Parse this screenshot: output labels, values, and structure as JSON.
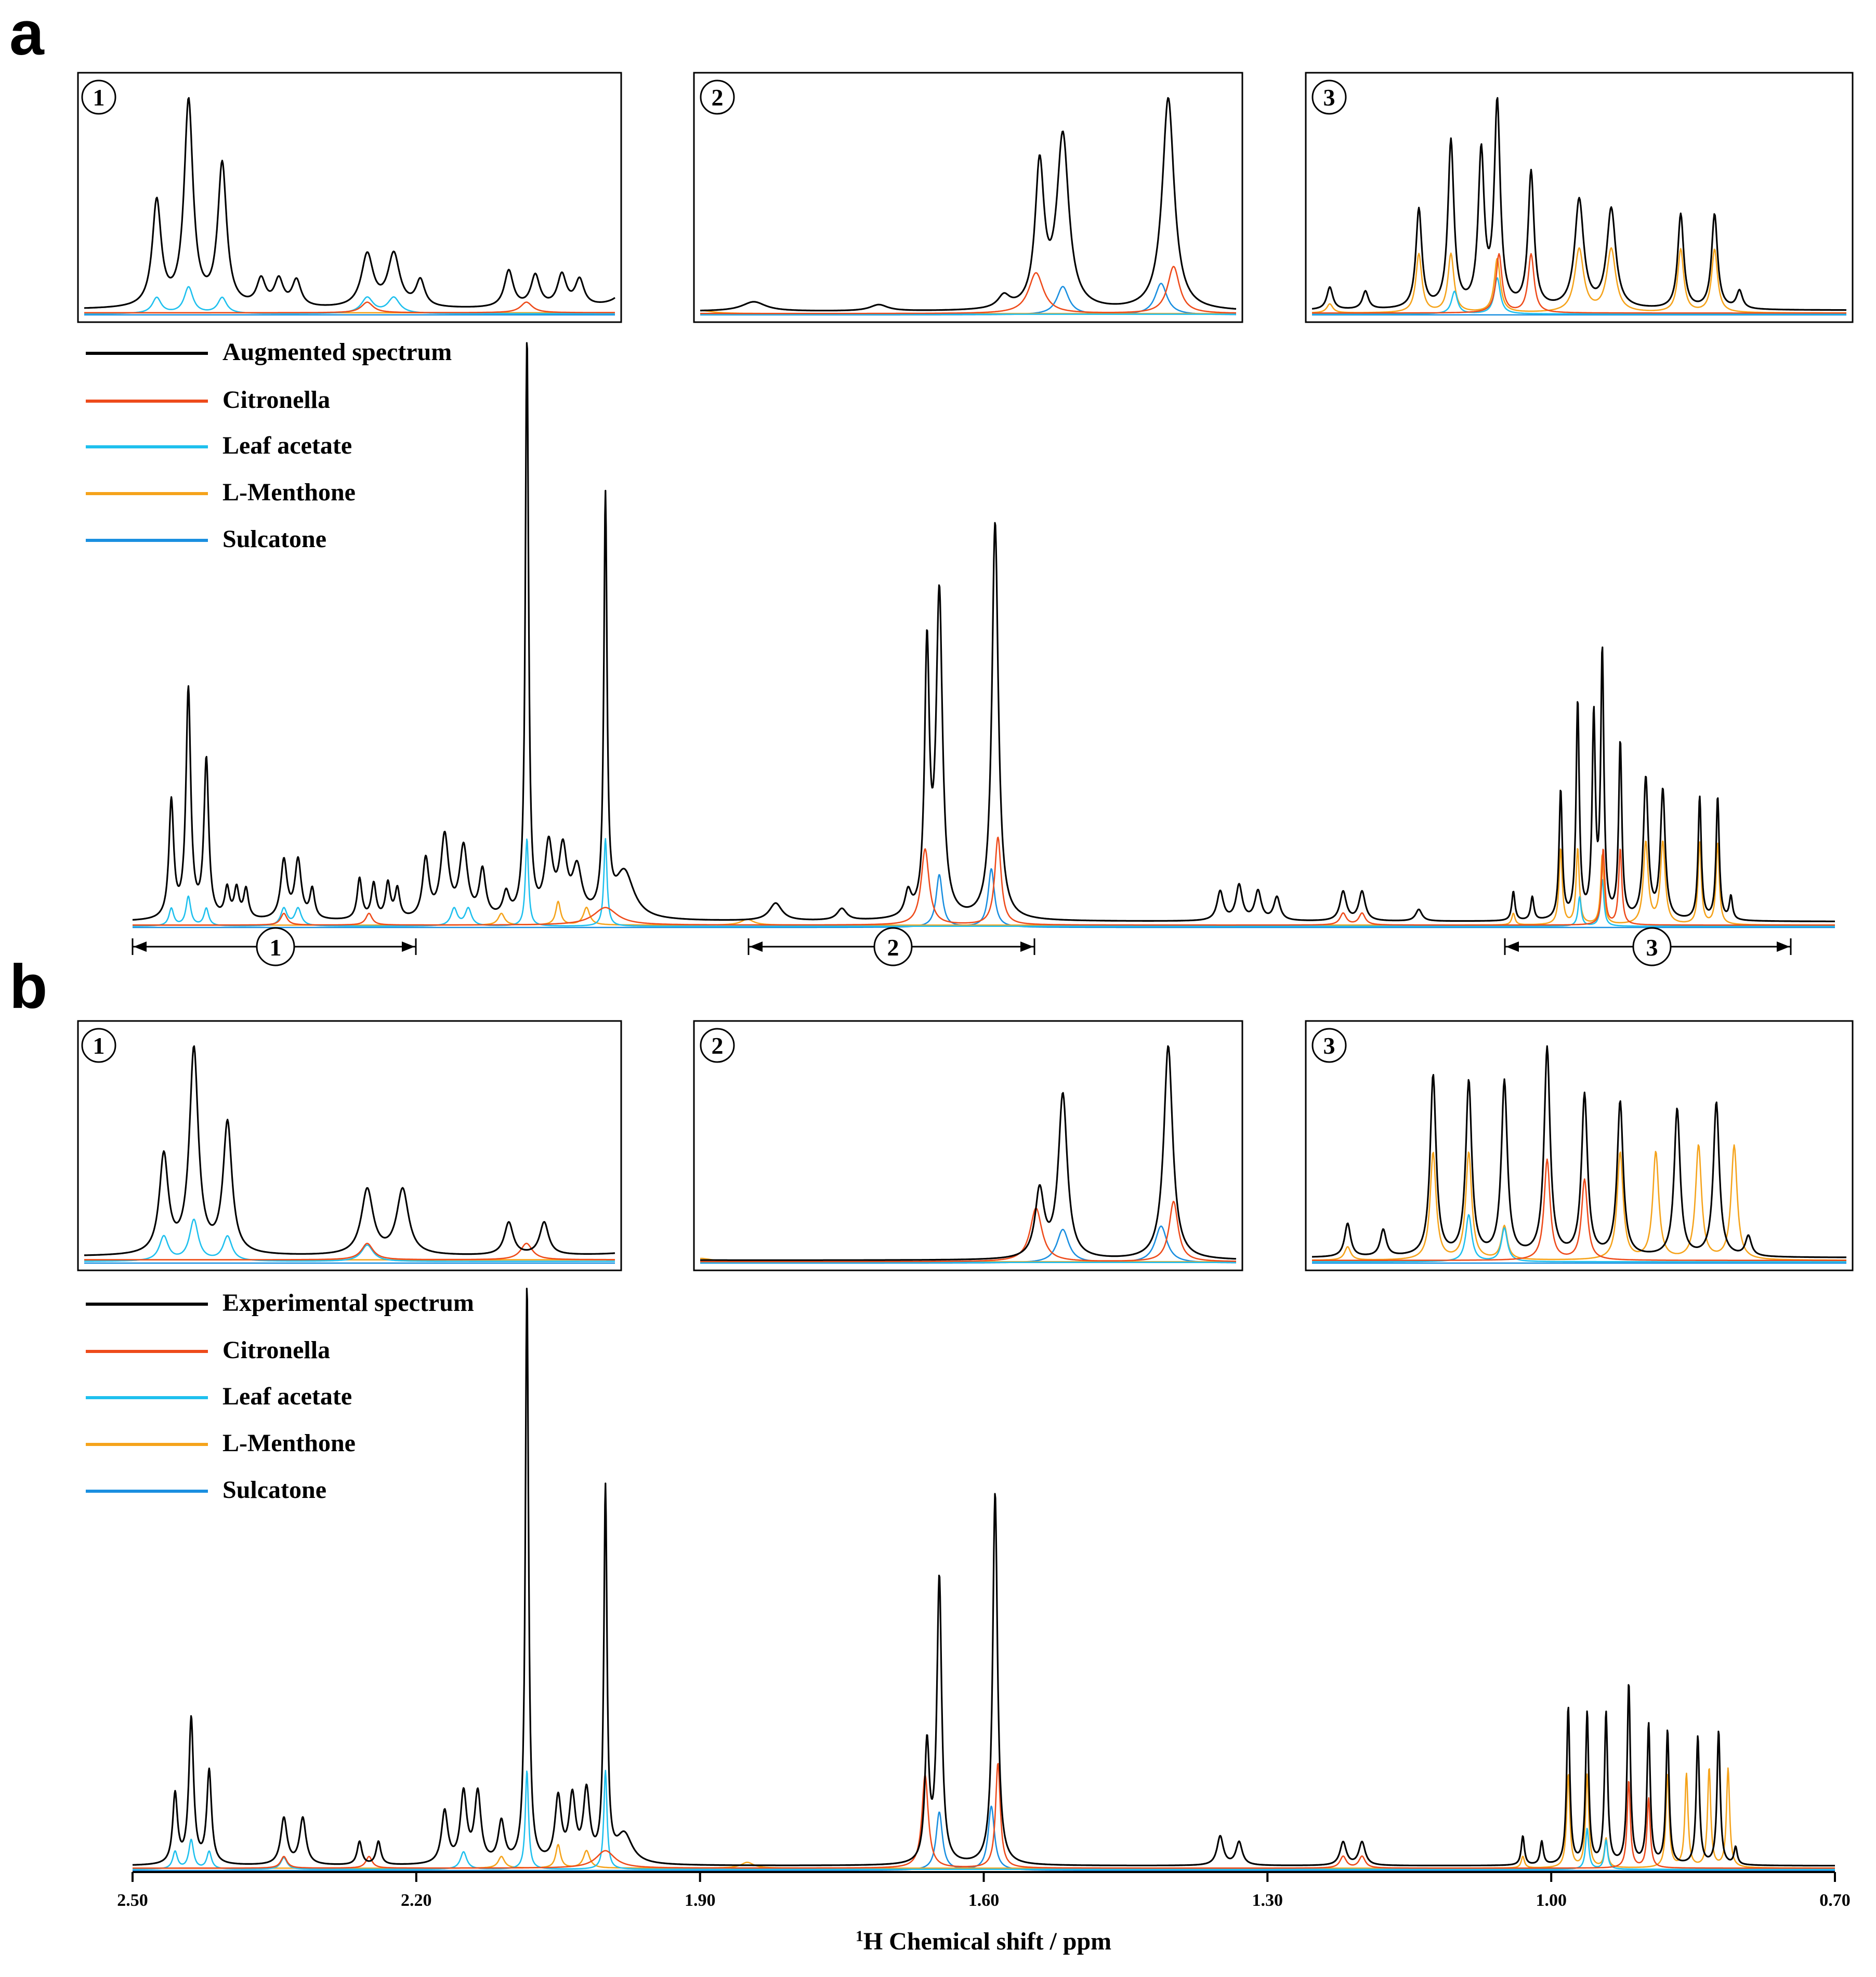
{
  "figure": {
    "panels": [
      {
        "letter": "a",
        "legend": [
          {
            "label": "Augmented spectrum",
            "color": "#000000"
          },
          {
            "label": "Citronella",
            "color": "#ee4b1b"
          },
          {
            "label": "Leaf acetate",
            "color": "#1fc0ee"
          },
          {
            "label": "L-Menthone",
            "color": "#f5a31b"
          },
          {
            "label": "Sulcatone",
            "color": "#1a8fe0"
          }
        ],
        "regions": [
          {
            "label": "1",
            "range": [
              2.5,
              2.2
            ]
          },
          {
            "label": "2",
            "range": [
              1.85,
              1.55
            ]
          },
          {
            "label": "3",
            "range": [
              1.05,
              0.75
            ]
          }
        ]
      },
      {
        "letter": "b",
        "legend": [
          {
            "label": "Experimental spectrum",
            "color": "#000000"
          },
          {
            "label": "Citronella",
            "color": "#ee4b1b"
          },
          {
            "label": "Leaf acetate",
            "color": "#1fc0ee"
          },
          {
            "label": "L-Menthone",
            "color": "#f5a31b"
          },
          {
            "label": "Sulcatone",
            "color": "#1a8fe0"
          }
        ],
        "regions": [
          {
            "label": "1",
            "range": [
              2.5,
              2.2
            ]
          },
          {
            "label": "2",
            "range": [
              1.85,
              1.55
            ]
          },
          {
            "label": "3",
            "range": [
              1.05,
              0.75
            ]
          }
        ]
      }
    ],
    "x_axis": {
      "label_super": "1",
      "label_main": "H Chemical shift / ppm",
      "ticks": [
        "2.50",
        "2.20",
        "1.90",
        "1.60",
        "1.30",
        "1.00",
        "0.70"
      ]
    }
  },
  "chart_data": [
    {
      "type": "line",
      "panel": "a",
      "title": "",
      "xlabel": "1H Chemical shift / ppm",
      "ylabel": "",
      "xlim": [
        2.5,
        0.7
      ],
      "ylim": [
        0,
        1.0
      ],
      "peak_list_note": "shift in ppm, relative intensity (0-1), Lorentzian half-width in ppm",
      "series": [
        {
          "name": "Augmented spectrum",
          "color": "#000000",
          "baseline": 0.01,
          "peaks": [
            [
              2.459,
              0.2,
              0.003
            ],
            [
              2.441,
              0.39,
              0.003
            ],
            [
              2.422,
              0.27,
              0.003
            ],
            [
              2.4,
              0.05,
              0.003
            ],
            [
              2.39,
              0.05,
              0.003
            ],
            [
              2.38,
              0.05,
              0.003
            ],
            [
              2.34,
              0.1,
              0.004
            ],
            [
              2.325,
              0.1,
              0.004
            ],
            [
              2.31,
              0.05,
              0.003
            ],
            [
              2.26,
              0.07,
              0.003
            ],
            [
              2.245,
              0.06,
              0.003
            ],
            [
              2.23,
              0.06,
              0.003
            ],
            [
              2.22,
              0.05,
              0.003
            ],
            [
              2.19,
              0.1,
              0.004
            ],
            [
              2.17,
              0.14,
              0.005
            ],
            [
              2.15,
              0.12,
              0.005
            ],
            [
              2.13,
              0.08,
              0.004
            ],
            [
              2.105,
              0.04,
              0.004
            ],
            [
              2.083,
              1.0,
              0.002
            ],
            [
              2.06,
              0.12,
              0.005
            ],
            [
              2.045,
              0.11,
              0.005
            ],
            [
              2.03,
              0.08,
              0.006
            ],
            [
              2.0,
              0.71,
              0.002
            ],
            [
              1.98,
              0.08,
              0.012
            ],
            [
              1.82,
              0.03,
              0.008
            ],
            [
              1.75,
              0.02,
              0.006
            ],
            [
              1.68,
              0.04,
              0.004
            ],
            [
              1.66,
              0.45,
              0.003
            ],
            [
              1.647,
              0.55,
              0.004
            ],
            [
              1.588,
              0.68,
              0.004
            ],
            [
              1.35,
              0.05,
              0.004
            ],
            [
              1.33,
              0.06,
              0.004
            ],
            [
              1.31,
              0.05,
              0.004
            ],
            [
              1.29,
              0.04,
              0.004
            ],
            [
              1.22,
              0.05,
              0.004
            ],
            [
              1.2,
              0.05,
              0.004
            ],
            [
              1.14,
              0.02,
              0.004
            ],
            [
              1.04,
              0.05,
              0.002
            ],
            [
              1.02,
              0.04,
              0.002
            ],
            [
              0.99,
              0.22,
              0.002
            ],
            [
              0.972,
              0.37,
              0.002
            ],
            [
              0.955,
              0.34,
              0.002
            ],
            [
              0.946,
              0.45,
              0.002
            ],
            [
              0.927,
              0.3,
              0.002
            ],
            [
              0.9,
              0.24,
              0.003
            ],
            [
              0.882,
              0.22,
              0.003
            ],
            [
              0.843,
              0.21,
              0.002
            ],
            [
              0.824,
              0.21,
              0.002
            ],
            [
              0.81,
              0.04,
              0.002
            ]
          ]
        },
        {
          "name": "Citronella",
          "color": "#ee4b1b",
          "baseline": 0.004,
          "peaks": [
            [
              2.34,
              0.02,
              0.004
            ],
            [
              2.25,
              0.02,
              0.004
            ],
            [
              2.0,
              0.03,
              0.015
            ],
            [
              1.662,
              0.13,
              0.005
            ],
            [
              1.585,
              0.15,
              0.004
            ],
            [
              1.22,
              0.02,
              0.004
            ],
            [
              1.2,
              0.02,
              0.004
            ],
            [
              0.945,
              0.13,
              0.002
            ],
            [
              0.927,
              0.13,
              0.002
            ]
          ]
        },
        {
          "name": "Leaf acetate",
          "color": "#1fc0ee",
          "baseline": 0.002,
          "peaks": [
            [
              2.459,
              0.03,
              0.003
            ],
            [
              2.441,
              0.05,
              0.003
            ],
            [
              2.422,
              0.03,
              0.003
            ],
            [
              2.34,
              0.03,
              0.004
            ],
            [
              2.325,
              0.03,
              0.004
            ],
            [
              2.16,
              0.03,
              0.004
            ],
            [
              2.145,
              0.03,
              0.004
            ],
            [
              2.083,
              0.15,
              0.002
            ],
            [
              2.0,
              0.15,
              0.002
            ],
            [
              0.946,
              0.08,
              0.002
            ],
            [
              0.97,
              0.05,
              0.002
            ]
          ]
        },
        {
          "name": "L-Menthone",
          "color": "#f5a31b",
          "baseline": 0.004,
          "peaks": [
            [
              2.11,
              0.02,
              0.004
            ],
            [
              2.05,
              0.04,
              0.003
            ],
            [
              2.02,
              0.03,
              0.004
            ],
            [
              1.85,
              0.01,
              0.008
            ],
            [
              1.04,
              0.02,
              0.002
            ],
            [
              0.99,
              0.13,
              0.002
            ],
            [
              0.972,
              0.13,
              0.002
            ],
            [
              0.946,
              0.12,
              0.002
            ],
            [
              0.9,
              0.14,
              0.003
            ],
            [
              0.882,
              0.14,
              0.003
            ],
            [
              0.843,
              0.14,
              0.002
            ],
            [
              0.824,
              0.14,
              0.002
            ]
          ]
        },
        {
          "name": "Sulcatone",
          "color": "#1a8fe0",
          "baseline": 0.0,
          "peaks": [
            [
              1.647,
              0.09,
              0.004
            ],
            [
              1.592,
              0.1,
              0.004
            ]
          ]
        }
      ]
    },
    {
      "type": "line",
      "panel": "b",
      "title": "",
      "xlabel": "1H Chemical shift / ppm",
      "ylabel": "",
      "xlim": [
        2.5,
        0.7
      ],
      "ylim": [
        0,
        1.0
      ],
      "peak_list_note": "shift in ppm, relative intensity (0-1), Lorentzian half-width in ppm",
      "series": [
        {
          "name": "Experimental spectrum",
          "color": "#000000",
          "baseline": 0.008,
          "peaks": [
            [
              2.455,
              0.12,
              0.003
            ],
            [
              2.438,
              0.25,
              0.003
            ],
            [
              2.419,
              0.16,
              0.003
            ],
            [
              2.34,
              0.08,
              0.004
            ],
            [
              2.32,
              0.08,
              0.004
            ],
            [
              2.26,
              0.04,
              0.003
            ],
            [
              2.24,
              0.04,
              0.003
            ],
            [
              2.17,
              0.09,
              0.004
            ],
            [
              2.15,
              0.12,
              0.004
            ],
            [
              2.135,
              0.12,
              0.004
            ],
            [
              2.11,
              0.07,
              0.004
            ],
            [
              2.083,
              1.0,
              0.002
            ],
            [
              2.05,
              0.11,
              0.004
            ],
            [
              2.035,
              0.11,
              0.004
            ],
            [
              2.02,
              0.12,
              0.004
            ],
            [
              2.0,
              0.64,
              0.002
            ],
            [
              1.98,
              0.05,
              0.01
            ],
            [
              1.66,
              0.2,
              0.003
            ],
            [
              1.647,
              0.49,
              0.003
            ],
            [
              1.588,
              0.64,
              0.003
            ],
            [
              1.35,
              0.05,
              0.004
            ],
            [
              1.33,
              0.04,
              0.004
            ],
            [
              1.22,
              0.04,
              0.004
            ],
            [
              1.2,
              0.04,
              0.004
            ],
            [
              1.03,
              0.05,
              0.002
            ],
            [
              1.01,
              0.04,
              0.002
            ],
            [
              0.982,
              0.27,
              0.002
            ],
            [
              0.962,
              0.26,
              0.002
            ],
            [
              0.942,
              0.26,
              0.002
            ],
            [
              0.918,
              0.31,
              0.002
            ],
            [
              0.897,
              0.24,
              0.002
            ],
            [
              0.877,
              0.23,
              0.002
            ],
            [
              0.845,
              0.22,
              0.002
            ],
            [
              0.823,
              0.23,
              0.002
            ],
            [
              0.805,
              0.03,
              0.002
            ]
          ]
        },
        {
          "name": "Citronella",
          "color": "#ee4b1b",
          "baseline": 0.004,
          "peaks": [
            [
              2.34,
              0.02,
              0.004
            ],
            [
              2.25,
              0.02,
              0.004
            ],
            [
              2.0,
              0.03,
              0.012
            ],
            [
              1.662,
              0.16,
              0.004
            ],
            [
              1.585,
              0.18,
              0.003
            ],
            [
              1.22,
              0.02,
              0.004
            ],
            [
              1.2,
              0.02,
              0.004
            ],
            [
              0.918,
              0.15,
              0.002
            ],
            [
              0.897,
              0.12,
              0.002
            ]
          ]
        },
        {
          "name": "Leaf acetate",
          "color": "#1fc0ee",
          "baseline": 0.002,
          "peaks": [
            [
              2.455,
              0.03,
              0.003
            ],
            [
              2.438,
              0.05,
              0.003
            ],
            [
              2.419,
              0.03,
              0.003
            ],
            [
              2.34,
              0.02,
              0.004
            ],
            [
              2.15,
              0.03,
              0.004
            ],
            [
              2.083,
              0.17,
              0.002
            ],
            [
              2.0,
              0.17,
              0.002
            ],
            [
              0.962,
              0.07,
              0.002
            ],
            [
              0.942,
              0.05,
              0.002
            ]
          ]
        },
        {
          "name": "L-Menthone",
          "color": "#f5a31b",
          "baseline": 0.004,
          "peaks": [
            [
              2.11,
              0.02,
              0.004
            ],
            [
              2.05,
              0.04,
              0.003
            ],
            [
              2.02,
              0.03,
              0.004
            ],
            [
              1.85,
              0.01,
              0.008
            ],
            [
              1.03,
              0.02,
              0.002
            ],
            [
              0.982,
              0.16,
              0.002
            ],
            [
              0.962,
              0.16,
              0.002
            ],
            [
              0.942,
              0.05,
              0.002
            ],
            [
              0.877,
              0.16,
              0.002
            ],
            [
              0.857,
              0.16,
              0.002
            ],
            [
              0.833,
              0.17,
              0.002
            ],
            [
              0.813,
              0.17,
              0.002
            ]
          ]
        },
        {
          "name": "Sulcatone",
          "color": "#1a8fe0",
          "baseline": 0.0,
          "peaks": [
            [
              1.647,
              0.1,
              0.004
            ],
            [
              1.592,
              0.11,
              0.004
            ]
          ]
        }
      ]
    }
  ]
}
